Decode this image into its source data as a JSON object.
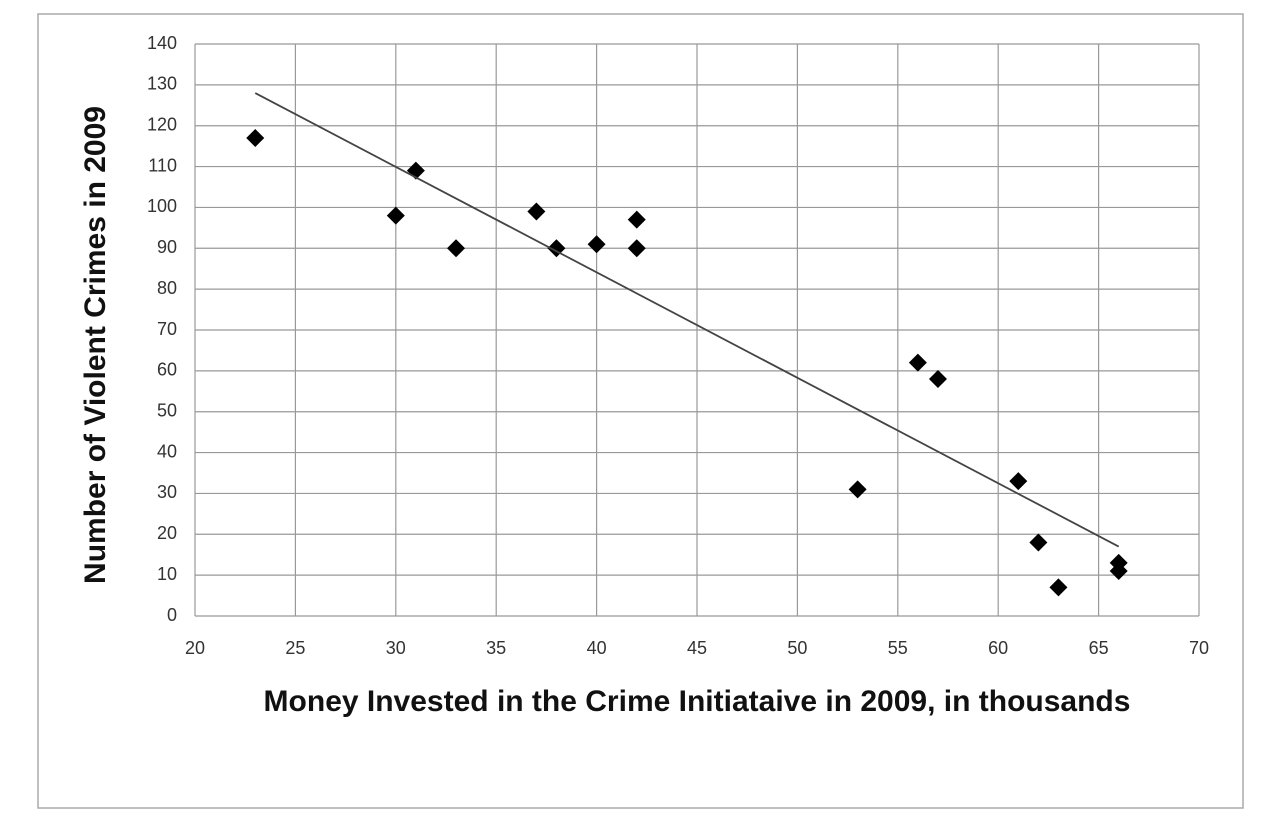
{
  "chart_data": {
    "type": "scatter",
    "x_label": "Money Invested in the Crime Initiataive in 2009, in thousands",
    "y_label": "Number of Violent Crimes in 2009",
    "x": [
      23,
      30,
      31,
      33,
      37,
      38,
      40,
      42,
      42,
      53,
      56,
      57,
      61,
      62,
      63,
      66,
      66
    ],
    "values": [
      117,
      98,
      109,
      90,
      99,
      90,
      91,
      97,
      90,
      31,
      62,
      58,
      33,
      18,
      7,
      13,
      11
    ],
    "color": "#000000",
    "trendline": {
      "x": [
        23,
        66
      ],
      "y": [
        128,
        17
      ],
      "color": "#444444"
    },
    "xlim": [
      20,
      70
    ],
    "xticks": [
      20,
      25,
      30,
      35,
      40,
      45,
      50,
      55,
      60,
      65,
      70
    ],
    "ylim": [
      0,
      140
    ],
    "yticks": [
      0,
      10,
      20,
      30,
      40,
      50,
      60,
      70,
      80,
      90,
      100,
      110,
      120,
      130,
      140
    ],
    "grid": true
  }
}
